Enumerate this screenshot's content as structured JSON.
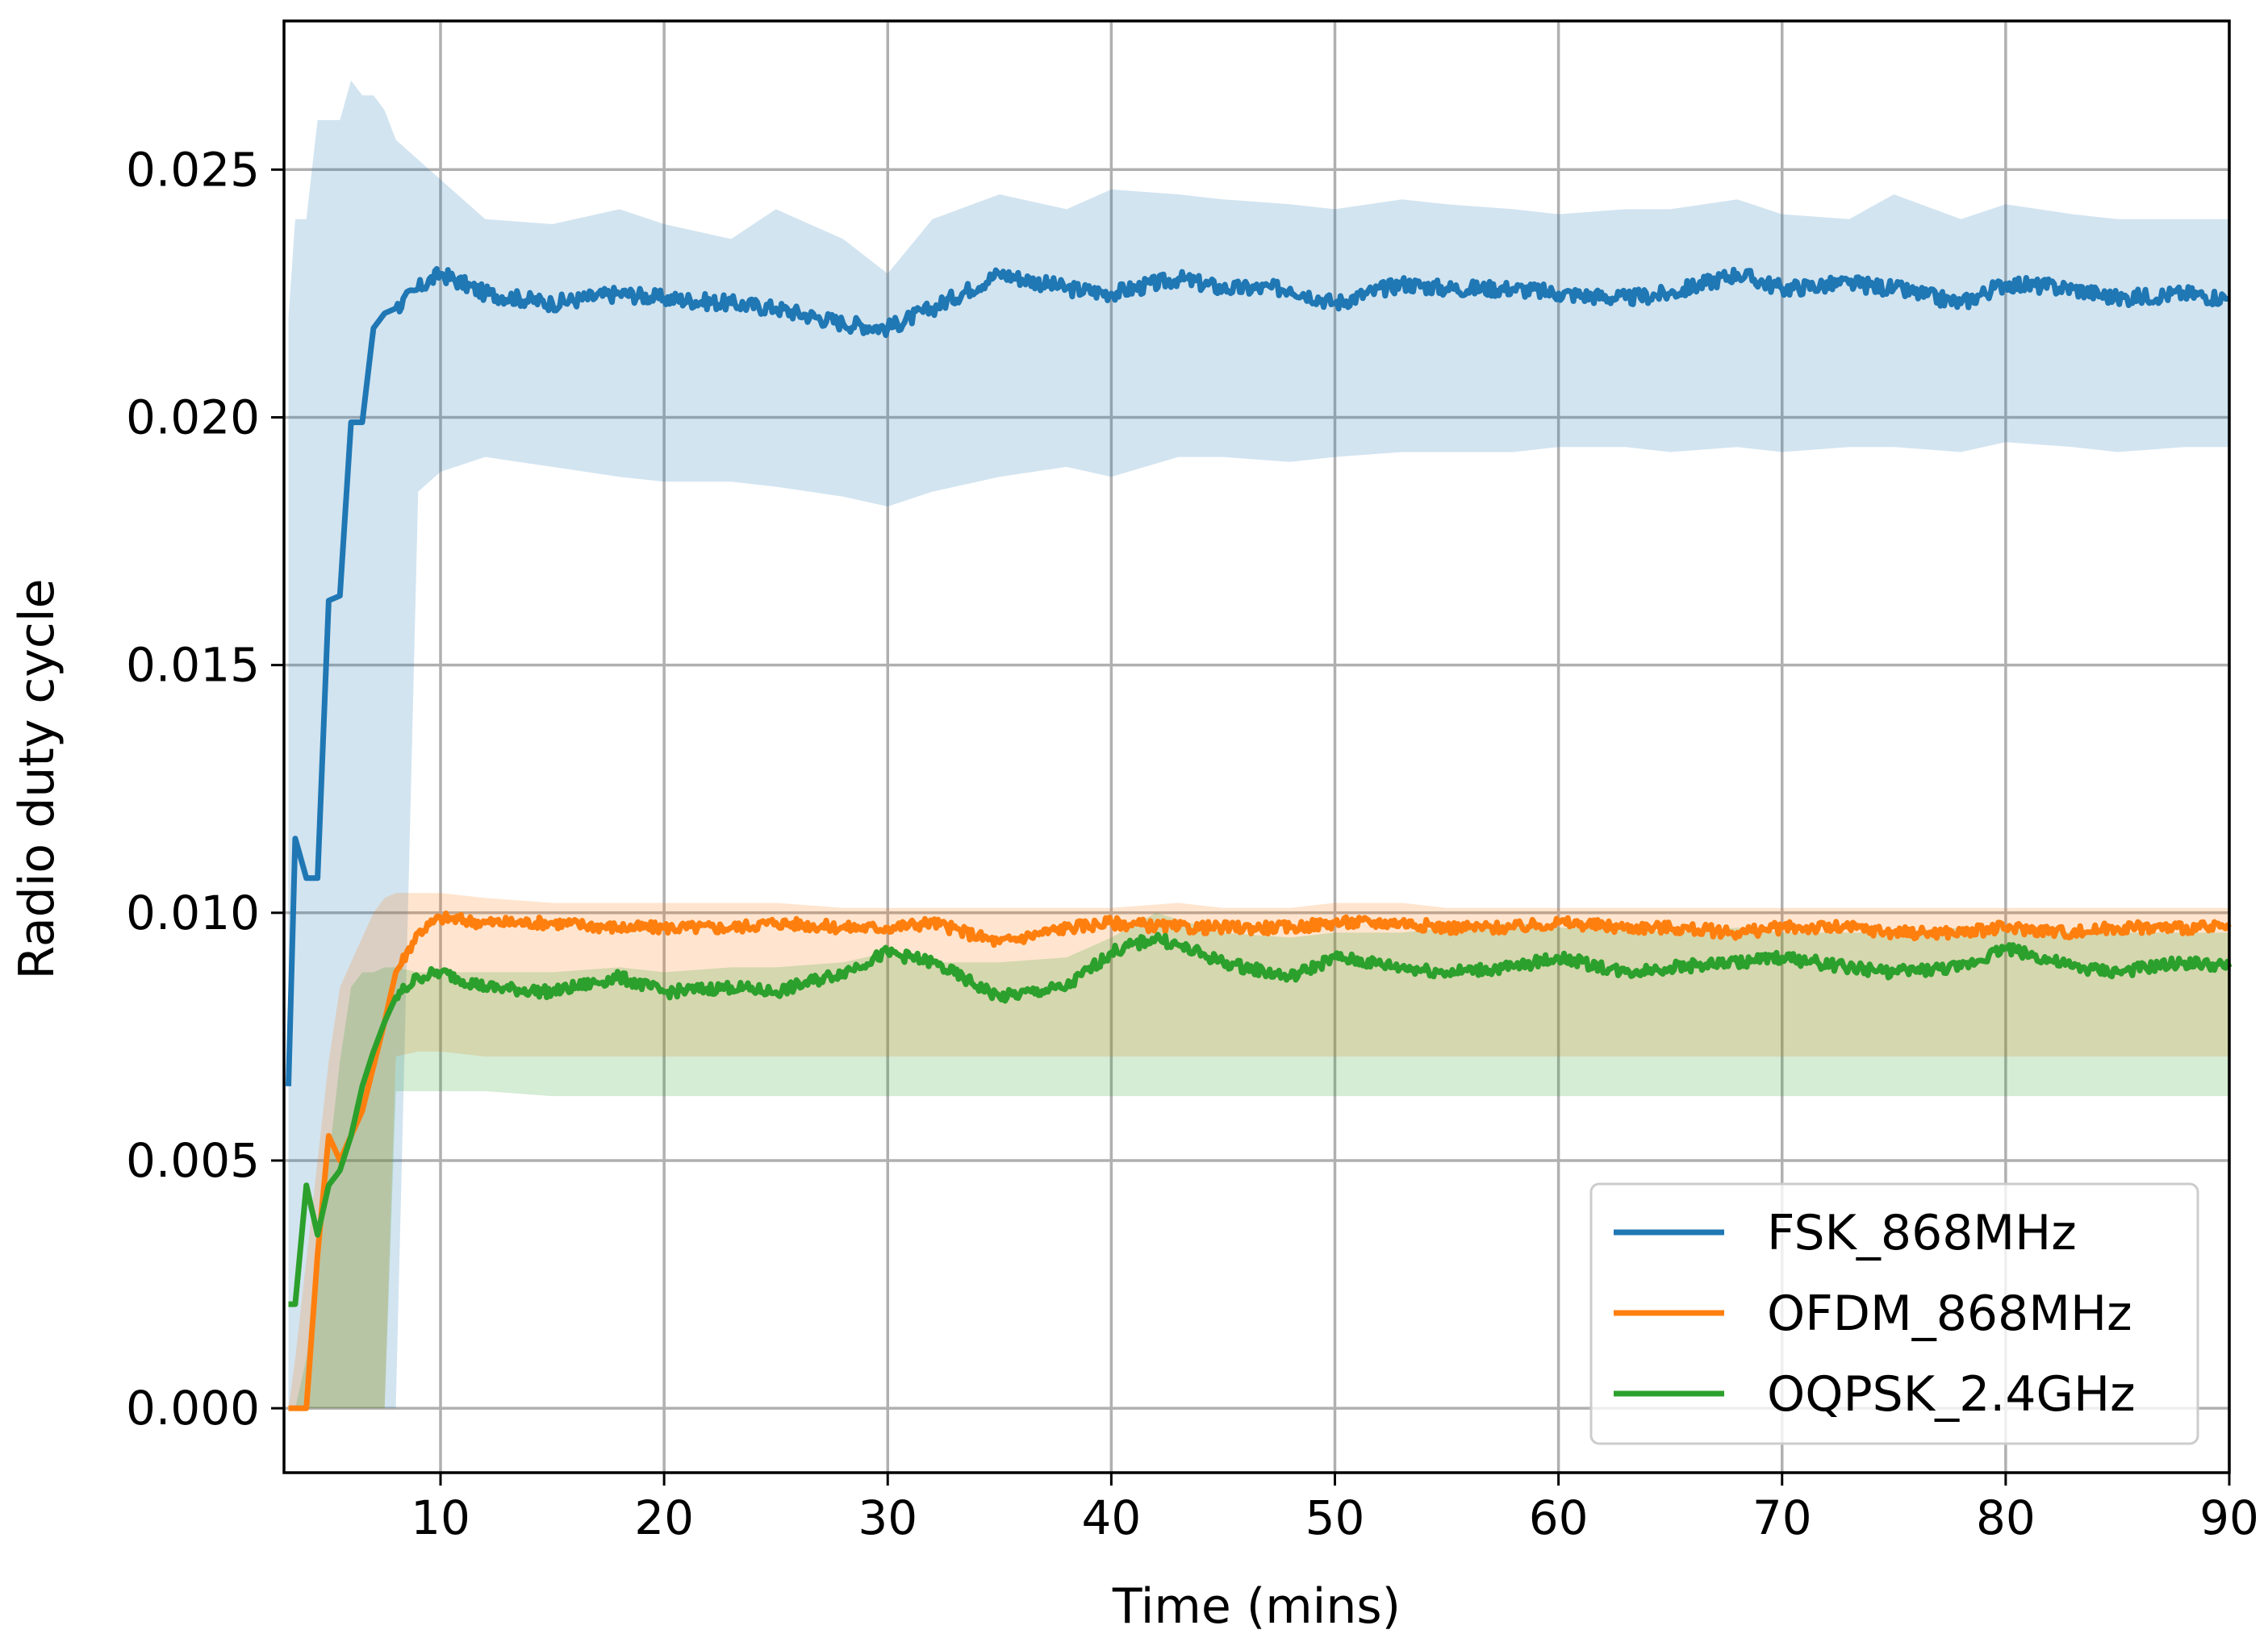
{
  "chart_data": {
    "type": "line",
    "title": "",
    "xlabel": "Time (mins)",
    "ylabel": "Radio duty cycle",
    "xlim": [
      3,
      90
    ],
    "ylim": [
      -0.0013,
      0.028
    ],
    "xticks": [
      10,
      20,
      30,
      40,
      50,
      60,
      70,
      80,
      90
    ],
    "xtick_labels": [
      "10",
      "20",
      "30",
      "40",
      "50",
      "60",
      "70",
      "80",
      "90"
    ],
    "yticks": [
      0.0,
      0.005,
      0.01,
      0.015,
      0.02,
      0.025
    ],
    "ytick_labels": [
      "0.000",
      "0.005",
      "0.010",
      "0.015",
      "0.020",
      "0.025"
    ],
    "grid": true,
    "legend_position": "bottom-right",
    "series": [
      {
        "name": "FSK_868MHz",
        "color": "#1f77b4",
        "band_color": "#1f77b4",
        "x": [
          3.2,
          3.5,
          4.0,
          4.5,
          5.0,
          5.5,
          6.0,
          6.5,
          7.0,
          7.5,
          8.0,
          9.0,
          10.0,
          12.0,
          15.0,
          18.0,
          20.0,
          23.0,
          25.0,
          28.0,
          30.0,
          32.0,
          35.0,
          38.0,
          40.0,
          43.0,
          45.0,
          48.0,
          50.0,
          53.0,
          55.0,
          58.0,
          60.0,
          63.0,
          65.0,
          68.0,
          70.0,
          73.0,
          75.0,
          78.0,
          80.0,
          83.0,
          85.0,
          88.0,
          90.0
        ],
        "values": [
          0.0065,
          0.0115,
          0.0107,
          0.0107,
          0.0163,
          0.0164,
          0.0199,
          0.0199,
          0.0218,
          0.0221,
          0.0222,
          0.0226,
          0.0229,
          0.0225,
          0.0223,
          0.0225,
          0.0224,
          0.0223,
          0.0222,
          0.0219,
          0.0218,
          0.0222,
          0.0229,
          0.0226,
          0.0225,
          0.0228,
          0.0226,
          0.0226,
          0.0223,
          0.0227,
          0.0226,
          0.0226,
          0.0225,
          0.0224,
          0.0225,
          0.0229,
          0.0226,
          0.0227,
          0.0226,
          0.0223,
          0.0227,
          0.0226,
          0.0224,
          0.0225,
          0.0224
        ],
        "lower": [
          0.0,
          0.0,
          0.0,
          0.0,
          0.0,
          0.0,
          0.0,
          0.0,
          0.0,
          0.0,
          0.0,
          0.0185,
          0.0189,
          0.0192,
          0.019,
          0.0188,
          0.0187,
          0.0187,
          0.0186,
          0.0184,
          0.0182,
          0.0185,
          0.0188,
          0.019,
          0.0188,
          0.0192,
          0.0192,
          0.0191,
          0.0192,
          0.0193,
          0.0193,
          0.0193,
          0.0194,
          0.0194,
          0.0193,
          0.0194,
          0.0193,
          0.0194,
          0.0194,
          0.0193,
          0.0195,
          0.0194,
          0.0193,
          0.0194,
          0.0194
        ],
        "upper": [
          0.022,
          0.024,
          0.024,
          0.026,
          0.026,
          0.026,
          0.0268,
          0.0265,
          0.0265,
          0.0262,
          0.0256,
          0.0252,
          0.0248,
          0.024,
          0.0239,
          0.0242,
          0.0239,
          0.0236,
          0.0242,
          0.0236,
          0.0229,
          0.024,
          0.0245,
          0.0242,
          0.0246,
          0.0245,
          0.0244,
          0.0243,
          0.0242,
          0.0244,
          0.0243,
          0.0242,
          0.0241,
          0.0242,
          0.0242,
          0.0244,
          0.0241,
          0.024,
          0.0245,
          0.024,
          0.0243,
          0.0241,
          0.024,
          0.024,
          0.024
        ]
      },
      {
        "name": "OFDM_868MHz",
        "color": "#ff7f0e",
        "band_color": "#ff7f0e",
        "x": [
          3.2,
          3.5,
          4.0,
          4.5,
          5.0,
          5.5,
          6.0,
          6.5,
          7.0,
          7.5,
          8.0,
          9.0,
          10.0,
          12.0,
          15.0,
          18.0,
          20.0,
          23.0,
          25.0,
          28.0,
          30.0,
          32.0,
          35.0,
          38.0,
          40.0,
          43.0,
          45.0,
          48.0,
          50.0,
          53.0,
          55.0,
          58.0,
          60.0,
          63.0,
          65.0,
          68.0,
          70.0,
          73.0,
          75.0,
          78.0,
          80.0,
          83.0,
          85.0,
          88.0,
          90.0
        ],
        "values": [
          0.0,
          0.0,
          0.0,
          0.0031,
          0.0055,
          0.005,
          0.0055,
          0.006,
          0.0069,
          0.0078,
          0.0088,
          0.0096,
          0.0099,
          0.0098,
          0.0098,
          0.0097,
          0.0097,
          0.0097,
          0.0098,
          0.0097,
          0.0097,
          0.0098,
          0.0094,
          0.0097,
          0.0098,
          0.0097,
          0.0097,
          0.0097,
          0.0098,
          0.0098,
          0.0097,
          0.0097,
          0.0098,
          0.0097,
          0.0097,
          0.0096,
          0.0097,
          0.0097,
          0.0096,
          0.0096,
          0.0097,
          0.0096,
          0.0097,
          0.0097,
          0.0097
        ],
        "lower": [
          0.0,
          0.0,
          0.0,
          0.0,
          0.0,
          0.0,
          0.0,
          0.0,
          0.0,
          0.0,
          0.0071,
          0.0072,
          0.0072,
          0.0071,
          0.0071,
          0.0071,
          0.0071,
          0.0071,
          0.0071,
          0.0071,
          0.0071,
          0.0071,
          0.0071,
          0.0071,
          0.0071,
          0.0071,
          0.0071,
          0.0071,
          0.0071,
          0.0071,
          0.0071,
          0.0071,
          0.0071,
          0.0071,
          0.0071,
          0.0071,
          0.0071,
          0.0071,
          0.0071,
          0.0071,
          0.0071,
          0.0071,
          0.0071,
          0.0071,
          0.0071
        ],
        "upper": [
          0.0,
          0.001,
          0.003,
          0.005,
          0.007,
          0.0085,
          0.009,
          0.0095,
          0.01,
          0.0103,
          0.0104,
          0.0104,
          0.0104,
          0.0103,
          0.0102,
          0.0102,
          0.0102,
          0.0102,
          0.0102,
          0.0101,
          0.0101,
          0.0101,
          0.0101,
          0.0101,
          0.0101,
          0.0102,
          0.0101,
          0.0101,
          0.0102,
          0.0102,
          0.0101,
          0.0101,
          0.0101,
          0.0101,
          0.0101,
          0.0101,
          0.0101,
          0.0101,
          0.0101,
          0.0101,
          0.0101,
          0.0101,
          0.0101,
          0.0101,
          0.0101
        ]
      },
      {
        "name": "OQPSK_2.4GHz",
        "color": "#2ca02c",
        "band_color": "#2ca02c",
        "x": [
          3.2,
          3.5,
          4.0,
          4.5,
          5.0,
          5.5,
          6.0,
          6.5,
          7.0,
          7.5,
          8.0,
          9.0,
          10.0,
          12.0,
          15.0,
          18.0,
          20.0,
          23.0,
          25.0,
          28.0,
          30.0,
          32.0,
          35.0,
          38.0,
          40.0,
          42.0,
          45.0,
          48.0,
          50.0,
          53.0,
          55.0,
          58.0,
          60.0,
          63.0,
          65.0,
          68.0,
          70.0,
          73.0,
          75.0,
          78.0,
          80.0,
          83.0,
          85.0,
          88.0,
          90.0
        ],
        "values": [
          0.0021,
          0.0021,
          0.0045,
          0.0035,
          0.0045,
          0.0048,
          0.0055,
          0.0065,
          0.0072,
          0.0078,
          0.0083,
          0.0087,
          0.0088,
          0.0085,
          0.0084,
          0.0087,
          0.0084,
          0.0085,
          0.0084,
          0.0088,
          0.0092,
          0.009,
          0.0083,
          0.0085,
          0.0092,
          0.0095,
          0.009,
          0.0087,
          0.0091,
          0.0089,
          0.0088,
          0.0089,
          0.0091,
          0.0088,
          0.0089,
          0.009,
          0.0091,
          0.0089,
          0.0088,
          0.0089,
          0.0093,
          0.0089,
          0.0088,
          0.009,
          0.0089
        ],
        "lower": [
          0.0,
          0.0,
          0.0,
          0.0,
          0.0,
          0.0,
          0.0,
          0.0,
          0.0,
          0.0,
          0.0064,
          0.0064,
          0.0064,
          0.0064,
          0.0063,
          0.0063,
          0.0063,
          0.0063,
          0.0063,
          0.0063,
          0.0063,
          0.0063,
          0.0063,
          0.0063,
          0.0063,
          0.0063,
          0.0063,
          0.0063,
          0.0063,
          0.0063,
          0.0063,
          0.0063,
          0.0063,
          0.0063,
          0.0063,
          0.0063,
          0.0063,
          0.0063,
          0.0063,
          0.0063,
          0.0063,
          0.0063,
          0.0063,
          0.0063,
          0.0063
        ],
        "upper": [
          0.0,
          0.0,
          0.001,
          0.003,
          0.005,
          0.007,
          0.0085,
          0.0088,
          0.0088,
          0.0089,
          0.0089,
          0.0088,
          0.0088,
          0.0088,
          0.0088,
          0.0089,
          0.0088,
          0.0089,
          0.0089,
          0.009,
          0.0092,
          0.009,
          0.009,
          0.0091,
          0.0095,
          0.01,
          0.0096,
          0.0095,
          0.0096,
          0.0096,
          0.0097,
          0.0098,
          0.0097,
          0.0097,
          0.0096,
          0.0097,
          0.0096,
          0.0096,
          0.0096,
          0.0097,
          0.0097,
          0.0096,
          0.0096,
          0.0096,
          0.0096
        ]
      }
    ]
  }
}
